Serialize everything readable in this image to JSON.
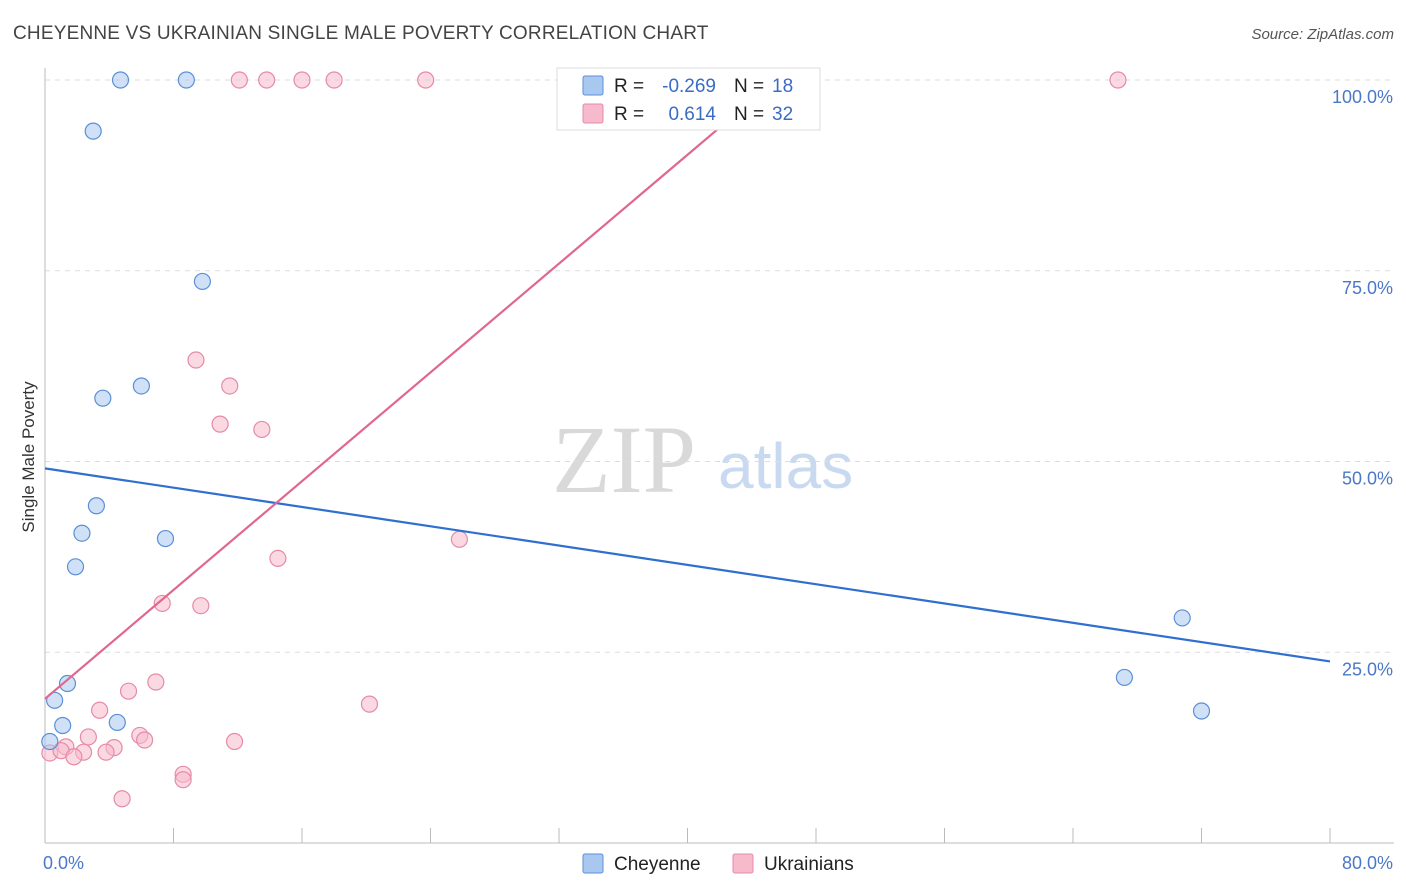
{
  "title": "CHEYENNE VS UKRAINIAN SINGLE MALE POVERTY CORRELATION CHART",
  "source": "Source: ZipAtlas.com",
  "watermark": {
    "part1": "ZIP",
    "part2": "atlas"
  },
  "colors": {
    "cheyenne_fill": "#a9c8f0",
    "cheyenne_stroke": "#5b8fd6",
    "cheyenne_line": "#2f6fd0",
    "ukrainians_fill": "#f7b9cc",
    "ukrainians_stroke": "#e68aa8",
    "ukrainians_line": "#e0678e",
    "tick_text": "#4a78c8",
    "grid": "#dddddd"
  },
  "stats": {
    "cheyenne": {
      "r_label": "R =",
      "r": "-0.269",
      "n_label": "N =",
      "n": "18"
    },
    "ukrainians": {
      "r_label": "R =",
      "r": "0.614",
      "n_label": "N =",
      "n": "32"
    }
  },
  "chart_data": {
    "type": "scatter",
    "title": "CHEYENNE VS UKRAINIAN SINGLE MALE POVERTY CORRELATION CHART",
    "xlabel": "",
    "ylabel": "Single Male Poverty",
    "xlim": [
      0,
      80
    ],
    "ylim": [
      0,
      100
    ],
    "x_tick_labels": [
      "0.0%",
      "80.0%"
    ],
    "y_ticks": [
      25,
      50,
      75,
      100
    ],
    "y_tick_labels": [
      "25.0%",
      "50.0%",
      "75.0%",
      "100.0%"
    ],
    "legend": [
      "Cheyenne",
      "Ukrainians"
    ],
    "series": [
      {
        "name": "Cheyenne",
        "points": [
          [
            4.7,
            100
          ],
          [
            8.8,
            100
          ],
          [
            3.0,
            93.3
          ],
          [
            9.8,
            73.6
          ],
          [
            6.0,
            59.9
          ],
          [
            3.6,
            58.3
          ],
          [
            3.2,
            44.2
          ],
          [
            2.3,
            40.6
          ],
          [
            7.5,
            39.9
          ],
          [
            1.9,
            36.2
          ],
          [
            1.4,
            20.9
          ],
          [
            0.6,
            18.7
          ],
          [
            1.1,
            15.4
          ],
          [
            4.5,
            15.8
          ],
          [
            0.3,
            13.3
          ],
          [
            67.2,
            21.7
          ],
          [
            70.8,
            29.5
          ],
          [
            72.0,
            17.3
          ]
        ],
        "trend": {
          "x": [
            0,
            80
          ],
          "y": [
            49.1,
            23.8
          ]
        }
      },
      {
        "name": "Ukrainians",
        "points": [
          [
            12.1,
            100
          ],
          [
            13.8,
            100
          ],
          [
            16.0,
            100
          ],
          [
            18.0,
            100
          ],
          [
            23.7,
            100
          ],
          [
            66.8,
            100
          ],
          [
            9.4,
            63.3
          ],
          [
            11.5,
            59.9
          ],
          [
            10.9,
            54.9
          ],
          [
            13.5,
            54.2
          ],
          [
            25.8,
            39.8
          ],
          [
            14.5,
            37.3
          ],
          [
            7.3,
            31.4
          ],
          [
            9.7,
            31.1
          ],
          [
            6.9,
            21.1
          ],
          [
            5.2,
            19.9
          ],
          [
            3.4,
            17.4
          ],
          [
            20.2,
            18.2
          ],
          [
            2.7,
            13.9
          ],
          [
            5.9,
            14.1
          ],
          [
            6.2,
            13.5
          ],
          [
            11.8,
            13.3
          ],
          [
            1.3,
            12.6
          ],
          [
            4.3,
            12.5
          ],
          [
            0.3,
            11.8
          ],
          [
            1.0,
            12.1
          ],
          [
            2.4,
            11.9
          ],
          [
            1.8,
            11.3
          ],
          [
            3.8,
            11.9
          ],
          [
            8.6,
            9.0
          ],
          [
            8.6,
            8.3
          ],
          [
            4.8,
            5.8
          ]
        ],
        "trend": {
          "x": [
            0,
            45.5
          ],
          "y": [
            18.9,
            100
          ]
        }
      }
    ]
  }
}
